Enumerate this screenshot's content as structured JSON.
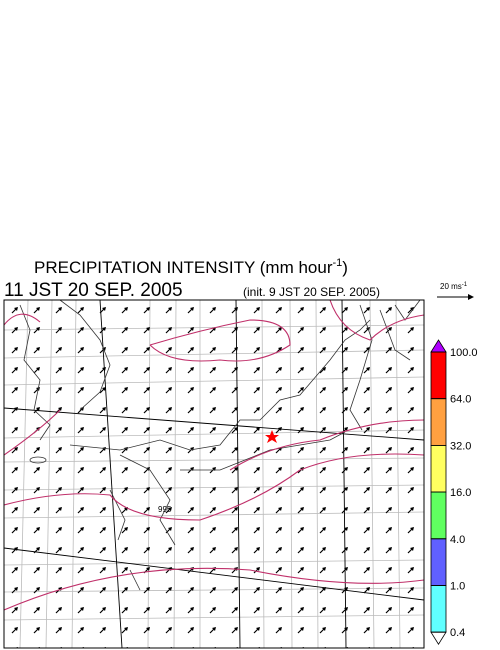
{
  "title": {
    "main": "PRECIPITATION INTENSITY (mm hour",
    "sup": "-1",
    "end": ")"
  },
  "valid_time": "11 JST 20 SEP. 2005",
  "init_time": "(init. 9 JST 20 SEP. 2005)",
  "reference_vector": {
    "label": "20 ms",
    "sup": "-1"
  },
  "contour_label": "995",
  "colorbar": {
    "levels": [
      {
        "value": 100,
        "label": "100.0"
      },
      {
        "value": 64,
        "label": "64.0"
      },
      {
        "value": 32,
        "label": "32.0"
      },
      {
        "value": 16,
        "label": "16.0"
      },
      {
        "value": 4,
        "label": "4.0"
      },
      {
        "value": 1,
        "label": "1.0"
      },
      {
        "value": 0.4,
        "label": "0.4"
      }
    ],
    "colors": [
      "#ff0000",
      "#ffa040",
      "#ffff60",
      "#60ff60",
      "#6060ff",
      "#60ffff"
    ],
    "over_color": "#b000ff",
    "under_color": "#ffffff"
  }
}
